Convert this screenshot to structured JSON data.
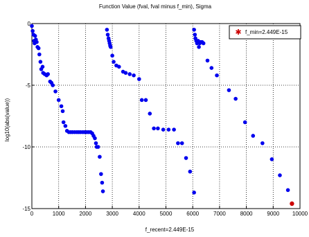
{
  "chart_data": {
    "type": "scatter",
    "title": "Function Value (fval, fval minus f_min), Sigma",
    "xlabel": "f_recent=2.449E-15",
    "ylabel": "log10(abs(value))",
    "xlim": [
      0,
      10000
    ],
    "ylim": [
      -15,
      0
    ],
    "xticks": [
      "0",
      "1000",
      "2000",
      "3000",
      "4000",
      "5000",
      "6000",
      "7000",
      "8000",
      "9000",
      "10000"
    ],
    "yticks": [
      "0",
      "-5",
      "-10",
      "-15"
    ],
    "grid": true,
    "legend_position": "top-right",
    "series": [
      {
        "color": "#0000ee",
        "marker": "circle",
        "points": [
          [
            0,
            -0.2
          ],
          [
            30,
            -0.6
          ],
          [
            60,
            -0.9
          ],
          [
            80,
            -1.4
          ],
          [
            100,
            -1.6
          ],
          [
            120,
            -1.0
          ],
          [
            150,
            -1.3
          ],
          [
            180,
            -1.5
          ],
          [
            210,
            -1.9
          ],
          [
            250,
            -2.0
          ],
          [
            280,
            -2.5
          ],
          [
            320,
            -3.1
          ],
          [
            350,
            -3.7
          ],
          [
            400,
            -3.5
          ],
          [
            420,
            -4.0
          ],
          [
            480,
            -4.1
          ],
          [
            550,
            -4.2
          ],
          [
            600,
            -4.1
          ],
          [
            680,
            -4.7
          ],
          [
            730,
            -4.8
          ],
          [
            780,
            -5.0
          ],
          [
            880,
            -5.5
          ],
          [
            1000,
            -6.2
          ],
          [
            1100,
            -6.7
          ],
          [
            1150,
            -7.1
          ],
          [
            1180,
            -8.0
          ],
          [
            1250,
            -8.3
          ],
          [
            1310,
            -8.7
          ],
          [
            1380,
            -8.8
          ],
          [
            1450,
            -8.8
          ],
          [
            1520,
            -8.8
          ],
          [
            1600,
            -8.8
          ],
          [
            1680,
            -8.8
          ],
          [
            1750,
            -8.8
          ],
          [
            1820,
            -8.8
          ],
          [
            1900,
            -8.8
          ],
          [
            1970,
            -8.8
          ],
          [
            2050,
            -8.8
          ],
          [
            2120,
            -8.8
          ],
          [
            2190,
            -8.8
          ],
          [
            2250,
            -8.9
          ],
          [
            2300,
            -9.1
          ],
          [
            2350,
            -9.3
          ],
          [
            2390,
            -9.7
          ],
          [
            2420,
            -10.0
          ],
          [
            2470,
            -10.0
          ],
          [
            2530,
            -10.8
          ],
          [
            2580,
            -12.2
          ],
          [
            2620,
            -12.9
          ],
          [
            2650,
            -13.6
          ],
          [
            2800,
            -0.5
          ],
          [
            2830,
            -0.9
          ],
          [
            2860,
            -1.2
          ],
          [
            2880,
            -1.4
          ],
          [
            2900,
            -1.6
          ],
          [
            2920,
            -1.8
          ],
          [
            2940,
            -1.9
          ],
          [
            3000,
            -2.6
          ],
          [
            3050,
            -3.1
          ],
          [
            3150,
            -3.4
          ],
          [
            3250,
            -3.5
          ],
          [
            3400,
            -3.9
          ],
          [
            3500,
            -4.0
          ],
          [
            3650,
            -4.1
          ],
          [
            3800,
            -4.2
          ],
          [
            4000,
            -4.5
          ],
          [
            4100,
            -6.2
          ],
          [
            4250,
            -6.2
          ],
          [
            4400,
            -7.3
          ],
          [
            4550,
            -8.5
          ],
          [
            4700,
            -8.5
          ],
          [
            4900,
            -8.6
          ],
          [
            5100,
            -8.6
          ],
          [
            5300,
            -8.6
          ],
          [
            5450,
            -9.7
          ],
          [
            5600,
            -9.7
          ],
          [
            5750,
            -10.9
          ],
          [
            5900,
            -12.0
          ],
          [
            6050,
            -13.7
          ],
          [
            6050,
            -0.5
          ],
          [
            6080,
            -0.9
          ],
          [
            6100,
            -1.2
          ],
          [
            6130,
            -1.4
          ],
          [
            6160,
            -1.6
          ],
          [
            6200,
            -1.4
          ],
          [
            6230,
            -1.9
          ],
          [
            6260,
            -1.6
          ],
          [
            6300,
            -1.5
          ],
          [
            6350,
            -1.5
          ],
          [
            6400,
            -1.6
          ],
          [
            6550,
            -3.0
          ],
          [
            6700,
            -3.6
          ],
          [
            6900,
            -4.2
          ],
          [
            7350,
            -5.4
          ],
          [
            7600,
            -6.1
          ],
          [
            7950,
            -8.0
          ],
          [
            8250,
            -9.1
          ],
          [
            8600,
            -9.7
          ],
          [
            8950,
            -11.0
          ],
          [
            9250,
            -12.3
          ],
          [
            9550,
            -13.5
          ]
        ]
      },
      {
        "name": "f_min=2.449E-15",
        "color": "#cc0000",
        "marker": "star",
        "points": [
          [
            9700,
            -14.6
          ]
        ]
      }
    ]
  }
}
